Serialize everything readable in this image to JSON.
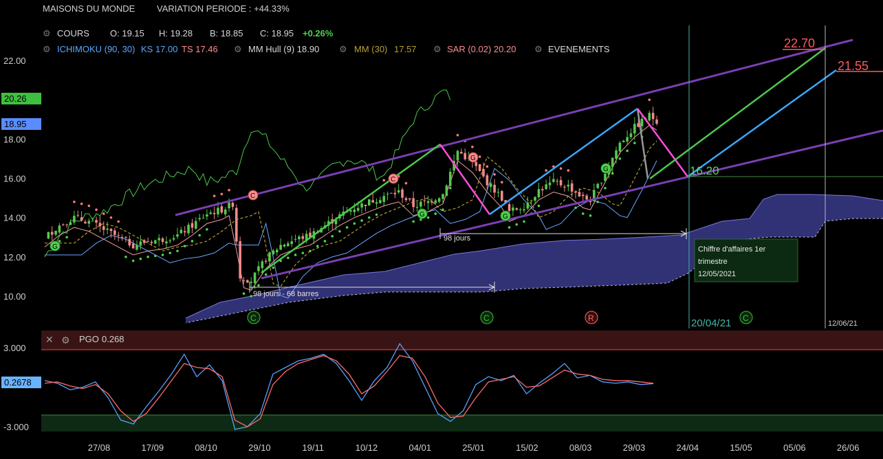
{
  "header": {
    "name": "MAISONS DU MONDE",
    "variation": "VARIATION PERIODE : +44.33%"
  },
  "legend_row1": {
    "cours": "COURS",
    "o": "O: 19.15",
    "h": "H: 19.28",
    "b": "B: 18.85",
    "c": "C: 18.95",
    "chg": "+0.26%"
  },
  "legend_row2": {
    "ichimoku": "ICHIMOKU (90, 30)",
    "ks": "KS 17.00",
    "ts": "TS 17.46",
    "hull": "MM Hull (9) 18.90",
    "mm_label": "MM (30)",
    "mm_value": "17.57",
    "sar": "SAR (0.02) 20.20",
    "events": "EVENEMENTS"
  },
  "pgo_panel": {
    "label": "PGO",
    "value": "0.268",
    "current_tag": "0.2678",
    "y_ticks": [
      "3.000",
      "-3.000"
    ]
  },
  "annotations": {
    "target_1": "22.70",
    "target_2": "21.55",
    "level": "16.20",
    "span_1": "98 jours",
    "span_2": "98 jours - 68 barres",
    "event_box_line1": "Chiffre d'affaires 1er",
    "event_box_line2": "trimestre",
    "event_box_date": "12/05/2021",
    "vline_1_date": "20/04/21",
    "vline_2_date": "12/06/21"
  },
  "price_tags": {
    "sar": "20.26",
    "last": "18.95"
  },
  "markers": {
    "c": "C",
    "r": "R",
    "g": "G"
  },
  "colors": {
    "bg": "#000000",
    "up": "#57c84d",
    "down": "#f08a8a",
    "channel": "#7b3fb5",
    "cloud": "#3a3a8a",
    "ks": "#6aa8ff",
    "green_line": "#4cc94c",
    "blue_line": "#3ba8ff",
    "magenta_line": "#ff4fd8",
    "pgo_blue": "#5aa0ff",
    "pgo_red": "#ff6b6b"
  },
  "chart_data": {
    "type": "candlestick",
    "y_ticks": [
      10,
      12,
      14,
      16,
      18,
      20,
      22
    ],
    "ylim": [
      8.5,
      23.5
    ],
    "x_ticks": [
      "27/08",
      "17/09",
      "08/10",
      "29/10",
      "19/11",
      "10/12",
      "04/01",
      "25/01",
      "15/02",
      "08/03",
      "29/03",
      "24/04",
      "15/05",
      "05/06",
      "26/06"
    ],
    "close_path": [
      [
        0,
        13.0
      ],
      [
        4,
        13.6
      ],
      [
        8,
        14.0
      ],
      [
        12,
        13.8
      ],
      [
        16,
        13.4
      ],
      [
        20,
        13.0
      ],
      [
        24,
        12.6
      ],
      [
        28,
        12.8
      ],
      [
        32,
        12.9
      ],
      [
        36,
        13.1
      ],
      [
        40,
        13.6
      ],
      [
        44,
        14.2
      ],
      [
        48,
        14.4
      ],
      [
        51,
        14.7
      ],
      [
        53,
        11.0
      ],
      [
        56,
        10.8
      ],
      [
        60,
        11.9
      ],
      [
        64,
        12.6
      ],
      [
        68,
        12.9
      ],
      [
        72,
        13.1
      ],
      [
        76,
        13.6
      ],
      [
        80,
        14.1
      ],
      [
        84,
        14.5
      ],
      [
        88,
        14.8
      ],
      [
        92,
        15.1
      ],
      [
        96,
        15.3
      ],
      [
        100,
        14.6
      ],
      [
        104,
        14.8
      ],
      [
        108,
        15.2
      ],
      [
        112,
        17.4
      ],
      [
        116,
        16.8
      ],
      [
        120,
        15.8
      ],
      [
        124,
        15.0
      ],
      [
        126,
        14.3
      ],
      [
        130,
        14.6
      ],
      [
        134,
        15.4
      ],
      [
        138,
        15.8
      ],
      [
        142,
        15.6
      ],
      [
        146,
        15.0
      ],
      [
        148,
        14.9
      ],
      [
        152,
        16.3
      ],
      [
        156,
        17.8
      ],
      [
        160,
        18.6
      ],
      [
        164,
        19.2
      ],
      [
        166,
        18.95
      ]
    ],
    "pgo": {
      "y_ticks": [
        3,
        -3
      ],
      "ylim": [
        -3.5,
        4.0
      ],
      "blue": [
        0.5,
        0.3,
        -0.2,
        0.0,
        0.4,
        -0.8,
        -2.5,
        -2.8,
        -1.5,
        -0.3,
        1.0,
        2.5,
        0.8,
        1.7,
        0.5,
        -3.2,
        -3.0,
        -2.0,
        1.0,
        1.5,
        2.0,
        2.2,
        2.5,
        1.8,
        0.5,
        -1.0,
        0.5,
        1.5,
        3.3,
        2.0,
        0.0,
        -2.0,
        -2.6,
        -1.8,
        0.2,
        0.8,
        0.5,
        0.9,
        -0.5,
        0.3,
        1.0,
        1.8,
        0.7,
        0.9,
        0.4,
        0.3,
        0.4,
        0.2,
        0.27
      ],
      "red": [
        0.3,
        0.4,
        0.1,
        -0.1,
        0.2,
        -0.5,
        -1.8,
        -2.6,
        -2.0,
        -0.8,
        0.5,
        1.8,
        1.5,
        1.4,
        0.8,
        -2.5,
        -3.0,
        -2.4,
        0.2,
        1.2,
        1.8,
        2.1,
        2.4,
        2.0,
        1.0,
        -0.5,
        0.1,
        1.2,
        2.4,
        2.2,
        0.8,
        -1.2,
        -2.3,
        -2.2,
        -0.8,
        0.4,
        0.6,
        0.8,
        0.0,
        0.1,
        0.7,
        1.3,
        1.0,
        0.9,
        0.6,
        0.5,
        0.5,
        0.4,
        0.3
      ]
    }
  }
}
